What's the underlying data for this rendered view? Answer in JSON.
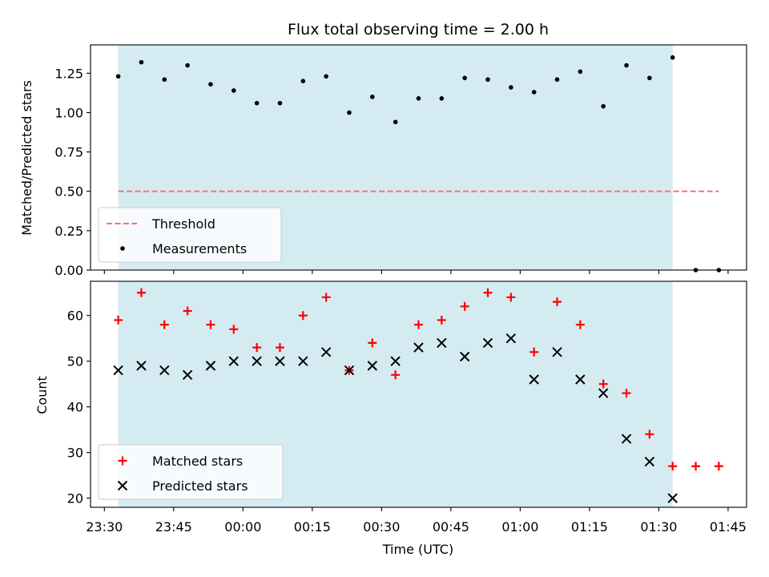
{
  "chart_data": [
    {
      "type": "scatter",
      "title": "Flux total observing time = 2.00 h",
      "xlabel": "",
      "ylabel": "Matched/Predicted stars",
      "x_unit": "time of day (UTC)",
      "xlim": [
        "23:27",
        "01:49"
      ],
      "ylim": [
        0,
        1.43
      ],
      "xticks": [
        "23:30",
        "23:45",
        "00:00",
        "00:15",
        "00:30",
        "00:45",
        "01:00",
        "01:15",
        "01:30",
        "01:45"
      ],
      "yticks": [
        "0.00",
        "0.25",
        "0.50",
        "0.75",
        "1.00",
        "1.25"
      ],
      "shaded_span": {
        "start": "23:33",
        "end": "01:33",
        "color": "#add8e6"
      },
      "legend": {
        "placement": "lower-left",
        "entries": [
          "Threshold",
          "Measurements"
        ]
      },
      "series": [
        {
          "name": "Threshold",
          "style": "dashed-line",
          "color": "#ff7070",
          "x": [
            "23:33",
            "01:43"
          ],
          "y": [
            0.5,
            0.5
          ]
        },
        {
          "name": "Measurements",
          "style": "dot",
          "color": "#000000",
          "x": [
            "23:33",
            "23:38",
            "23:43",
            "23:48",
            "23:53",
            "23:58",
            "00:03",
            "00:08",
            "00:13",
            "00:18",
            "00:23",
            "00:28",
            "00:33",
            "00:38",
            "00:43",
            "00:48",
            "00:53",
            "00:58",
            "01:03",
            "01:08",
            "01:13",
            "01:18",
            "01:23",
            "01:28",
            "01:33",
            "01:38",
            "01:43"
          ],
          "y": [
            1.23,
            1.32,
            1.21,
            1.3,
            1.18,
            1.14,
            1.06,
            1.06,
            1.2,
            1.23,
            1.0,
            1.1,
            0.94,
            1.09,
            1.09,
            1.22,
            1.21,
            1.16,
            1.13,
            1.21,
            1.26,
            1.04,
            1.3,
            1.22,
            1.35,
            0.0,
            0.0
          ]
        }
      ]
    },
    {
      "type": "scatter",
      "title": "",
      "xlabel": "Time (UTC)",
      "ylabel": "Count",
      "x_unit": "time of day (UTC)",
      "xlim": [
        "23:27",
        "01:49"
      ],
      "ylim": [
        18,
        67.5
      ],
      "xticks": [
        "23:30",
        "23:45",
        "00:00",
        "00:15",
        "00:30",
        "00:45",
        "01:00",
        "01:15",
        "01:30",
        "01:45"
      ],
      "yticks": [
        "20",
        "30",
        "40",
        "50",
        "60"
      ],
      "shaded_span": {
        "start": "23:33",
        "end": "01:33",
        "color": "#add8e6"
      },
      "legend": {
        "placement": "lower-left",
        "entries": [
          "Matched stars",
          "Predicted stars"
        ]
      },
      "series": [
        {
          "name": "Matched stars",
          "marker": "plus",
          "color": "#ff0000",
          "x": [
            "23:33",
            "23:38",
            "23:43",
            "23:48",
            "23:53",
            "23:58",
            "00:03",
            "00:08",
            "00:13",
            "00:18",
            "00:23",
            "00:28",
            "00:33",
            "00:38",
            "00:43",
            "00:48",
            "00:53",
            "00:58",
            "01:03",
            "01:08",
            "01:13",
            "01:18",
            "01:23",
            "01:28",
            "01:33",
            "01:38",
            "01:43"
          ],
          "y": [
            59,
            65,
            58,
            61,
            58,
            57,
            53,
            53,
            60,
            64,
            48,
            54,
            47,
            58,
            59,
            62,
            65,
            64,
            52,
            63,
            58,
            45,
            43,
            34,
            27,
            27,
            27
          ]
        },
        {
          "name": "Predicted stars",
          "marker": "x",
          "color": "#000000",
          "x": [
            "23:33",
            "23:38",
            "23:43",
            "23:48",
            "23:53",
            "23:58",
            "00:03",
            "00:08",
            "00:13",
            "00:18",
            "00:23",
            "00:28",
            "00:33",
            "00:38",
            "00:43",
            "00:48",
            "00:53",
            "00:58",
            "01:03",
            "01:08",
            "01:13",
            "01:18",
            "01:23",
            "01:28",
            "01:33"
          ],
          "y": [
            48,
            49,
            48,
            47,
            49,
            50,
            50,
            50,
            50,
            52,
            48,
            49,
            50,
            53,
            54,
            51,
            54,
            55,
            46,
            52,
            46,
            43,
            33,
            28,
            20
          ]
        }
      ]
    }
  ]
}
